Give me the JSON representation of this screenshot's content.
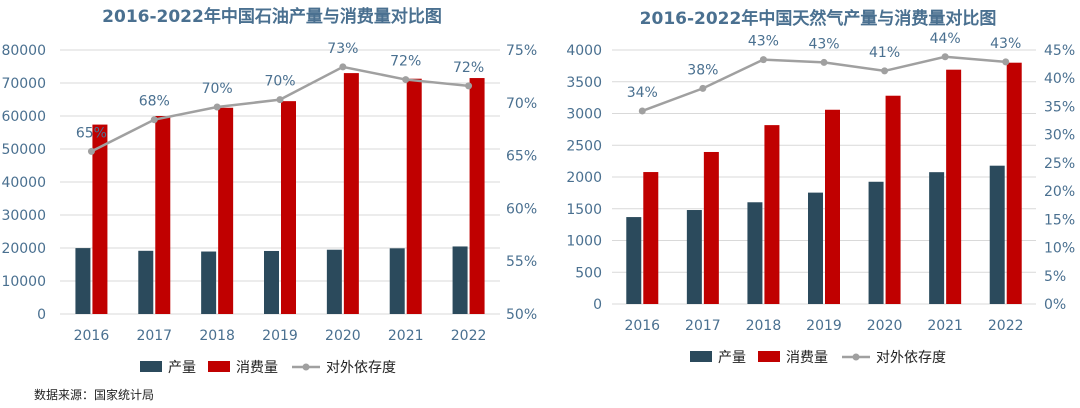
{
  "source_note": "数据来源：国家统计局",
  "colors": {
    "production": "#2b4a5c",
    "consumption": "#c00000",
    "dependency": "#a0a0a0",
    "axis_text": "#4a7090",
    "title": "#4a7090",
    "grid": "#d9d9d9"
  },
  "chart_data": [
    {
      "type": "bar",
      "title": "2016-2022年中国石油产量与消费量对比图",
      "categories": [
        "2016",
        "2017",
        "2018",
        "2019",
        "2020",
        "2021",
        "2022"
      ],
      "series": [
        {
          "name": "产量",
          "kind": "bar",
          "axis": "left",
          "values": [
            19969,
            19151,
            18932,
            19101,
            19477,
            19898,
            20467
          ]
        },
        {
          "name": "消费量",
          "kind": "bar",
          "axis": "left",
          "values": [
            57400,
            60000,
            62500,
            64500,
            73000,
            71300,
            71500
          ]
        },
        {
          "name": "对外依存度",
          "kind": "line",
          "axis": "right",
          "values": [
            65.4,
            68.4,
            69.6,
            70.3,
            73.4,
            72.2,
            71.6
          ],
          "labels": [
            "65%",
            "68%",
            "70%",
            "70%",
            "73%",
            "72%",
            "72%"
          ]
        }
      ],
      "ylim_left": [
        0,
        80000
      ],
      "ylim_right": [
        50,
        75
      ],
      "yticks_left": [
        "0",
        "10000",
        "20000",
        "30000",
        "40000",
        "50000",
        "60000",
        "70000",
        "80000"
      ],
      "yticks_right": [
        "50%",
        "55%",
        "60%",
        "65%",
        "70%",
        "75%"
      ],
      "legend_position": "bottom"
    },
    {
      "type": "bar",
      "title": "2016-2022年中国天然气产量与消费量对比图",
      "categories": [
        "2016",
        "2017",
        "2018",
        "2019",
        "2020",
        "2021",
        "2022"
      ],
      "series": [
        {
          "name": "产量",
          "kind": "bar",
          "axis": "left",
          "values": [
            1369,
            1480,
            1602,
            1754,
            1925,
            2076,
            2178
          ]
        },
        {
          "name": "消费量",
          "kind": "bar",
          "axis": "left",
          "values": [
            2078,
            2394,
            2817,
            3059,
            3280,
            3690,
            3800
          ]
        },
        {
          "name": "对外依存度",
          "kind": "line",
          "axis": "right",
          "values": [
            34.2,
            38.2,
            43.3,
            42.8,
            41.3,
            43.8,
            42.9
          ],
          "labels": [
            "34%",
            "38%",
            "43%",
            "43%",
            "41%",
            "44%",
            "43%"
          ]
        }
      ],
      "ylim_left": [
        0,
        4000
      ],
      "ylim_right": [
        0,
        45
      ],
      "yticks_left": [
        "0",
        "500",
        "1000",
        "1500",
        "2000",
        "2500",
        "3000",
        "3500",
        "4000"
      ],
      "yticks_right": [
        "0%",
        "5%",
        "10%",
        "15%",
        "20%",
        "25%",
        "30%",
        "35%",
        "40%",
        "45%"
      ],
      "legend_position": "bottom"
    }
  ]
}
